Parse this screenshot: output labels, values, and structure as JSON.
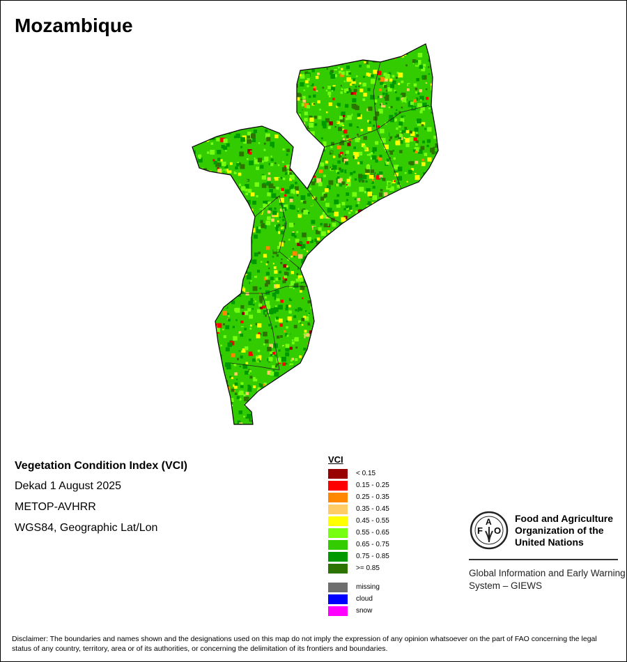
{
  "title": "Mozambique",
  "info": {
    "index": "Vegetation Condition Index (VCI)",
    "period": "Dekad 1 August 2025",
    "sensor": "METOP-AVHRR",
    "projection": "WGS84, Geographic Lat/Lon"
  },
  "legend": {
    "title": "VCI",
    "classes": [
      {
        "label": "< 0.15",
        "color": "#990000"
      },
      {
        "label": "0.15 - 0.25",
        "color": "#ff0000"
      },
      {
        "label": "0.25 - 0.35",
        "color": "#ff8800"
      },
      {
        "label": "0.35 - 0.45",
        "color": "#ffcc66"
      },
      {
        "label": "0.45 - 0.55",
        "color": "#ffff00"
      },
      {
        "label": "0.55 - 0.65",
        "color": "#77ff11"
      },
      {
        "label": "0.65 - 0.75",
        "color": "#33cc00"
      },
      {
        "label": "0.75 - 0.85",
        "color": "#009900"
      },
      {
        "label": ">= 0.85",
        "color": "#2d7300"
      }
    ],
    "special": [
      {
        "label": "missing",
        "color": "#6e6e6e"
      },
      {
        "label": "cloud",
        "color": "#0000ff"
      },
      {
        "label": "snow",
        "color": "#ff00ff"
      }
    ]
  },
  "org": {
    "logo_text": "FAO FIAT PANIS",
    "name": "Food and Agriculture Organization of the United Nations",
    "system": "Global Information and Early Warning System – GIEWS"
  },
  "disclaimer": "Disclaimer: The boundaries and names shown and the designations used on this map do not imply the expression of any opinion whatsoever on the part of FAO concerning the legal status of any country, territory, area or of its authorities, or concerning the delimitation of its frontiers and boundaries."
}
